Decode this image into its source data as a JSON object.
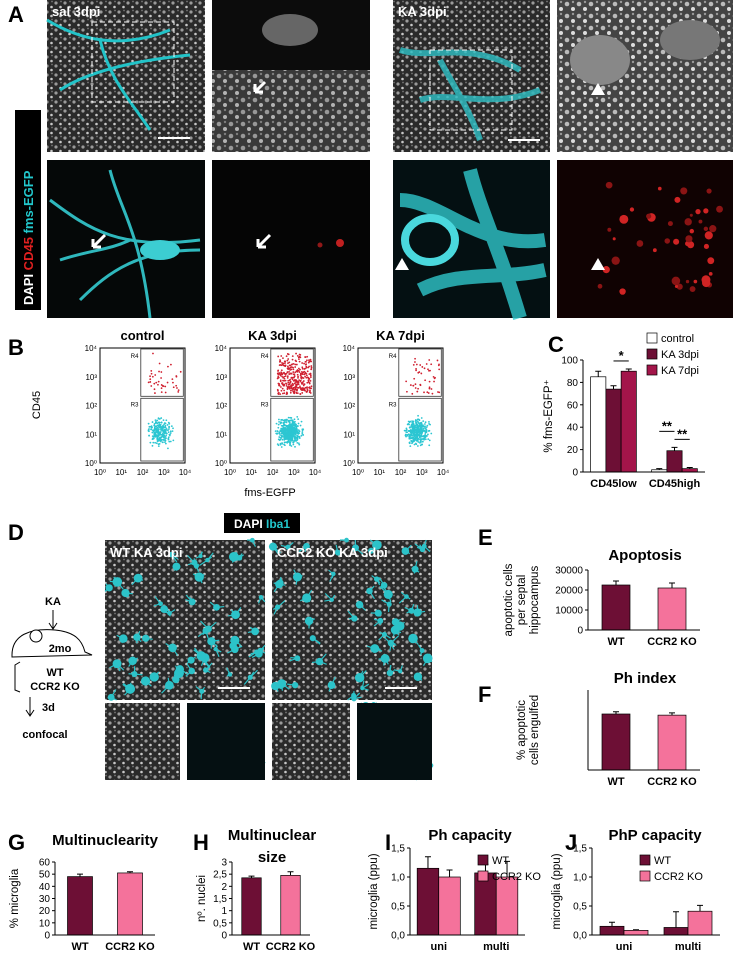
{
  "figure": {
    "A": {
      "letter": "A",
      "left_label": "sal 3dpi",
      "right_label": "KA 3dpi",
      "stain": [
        "DAPI",
        "CD45",
        "fms-EGFP"
      ]
    },
    "B": {
      "letter": "B",
      "plots": [
        "control",
        "KA 3dpi",
        "KA 7dpi"
      ],
      "y_label": "CD45",
      "x_label": "fms-EGFP",
      "gates": [
        "R4",
        "R3"
      ],
      "y_tick_labels": [
        "10⁰",
        "10¹",
        "10²",
        "10³",
        "10⁴"
      ],
      "x_tick_labels": [
        "10⁰",
        "10¹",
        "10²",
        "10³",
        "10⁴"
      ]
    },
    "D": {
      "letter": "D",
      "stain": [
        "DAPI",
        "Iba1"
      ],
      "left_image": "WT KA 3dpi",
      "right_image": "CCR2 KO KA 3dpi",
      "scheme": [
        "KA",
        "2mo",
        "WT",
        "CCR2 KO",
        "3d",
        "confocal"
      ]
    }
  },
  "chart_data": [
    {
      "type": "bar",
      "panel": "C",
      "y_label": "% fms-EGFP⁺",
      "categories": [
        "CD45low",
        "CD45high"
      ],
      "series": [
        {
          "name": "control",
          "color": "#ffffff",
          "values": [
            85,
            2
          ],
          "errors": [
            5,
            1
          ]
        },
        {
          "name": "KA 3dpi",
          "color": "#6d0f35",
          "values": [
            74,
            19
          ],
          "errors": [
            3,
            3
          ]
        },
        {
          "name": "KA 7dpi",
          "color": "#a3154a",
          "values": [
            90,
            3
          ],
          "errors": [
            2,
            1
          ]
        }
      ],
      "ylim": [
        0,
        100
      ],
      "yticks": [
        0,
        20,
        40,
        60,
        80,
        100
      ],
      "annotations": [
        "*",
        "**",
        "**"
      ]
    },
    {
      "type": "bar",
      "panel": "E",
      "title": [
        "Apoptosis"
      ],
      "y_label": [
        "apoptotic cells",
        "per septal",
        "hippocampus"
      ],
      "categories": [
        "WT",
        "CCR2 KO"
      ],
      "series": [
        {
          "colors": [
            "#6d0f35",
            "#f4729b"
          ],
          "values": [
            22500,
            21000
          ],
          "errors": [
            2000,
            2500
          ]
        }
      ],
      "ylim": [
        0,
        30000
      ],
      "yticks": [
        0,
        10000,
        20000,
        30000
      ]
    },
    {
      "type": "bar",
      "panel": "F",
      "title": [
        "Ph index"
      ],
      "y_label": [
        "% apoptotic",
        "cells engulfed"
      ],
      "categories": [
        "WT",
        "CCR2 KO"
      ],
      "series": [
        {
          "colors": [
            "#6d0f35",
            "#f4729b"
          ],
          "values": [
            24.5,
            24
          ],
          "errors": [
            1,
            1
          ]
        }
      ],
      "ylim": [
        0,
        35
      ],
      "yticks": []
    },
    {
      "type": "bar",
      "panel": "G",
      "title": [
        "Multinuclearity"
      ],
      "y_label": [
        "% microglia"
      ],
      "categories": [
        "WT",
        "CCR2 KO"
      ],
      "series": [
        {
          "colors": [
            "#6d0f35",
            "#f4729b"
          ],
          "values": [
            48,
            51
          ],
          "errors": [
            2,
            1
          ]
        }
      ],
      "ylim": [
        0,
        60
      ],
      "yticks": [
        0,
        10,
        20,
        30,
        40,
        50,
        60
      ]
    },
    {
      "type": "bar",
      "panel": "H",
      "title": [
        "Multinuclear",
        "size"
      ],
      "y_label": [
        "nº. nuclei"
      ],
      "categories": [
        "WT",
        "CCR2 KO"
      ],
      "series": [
        {
          "colors": [
            "#6d0f35",
            "#f4729b"
          ],
          "values": [
            2.35,
            2.45
          ],
          "errors": [
            0.07,
            0.15
          ]
        }
      ],
      "ylim": [
        0,
        3
      ],
      "yticks": [
        0,
        {
          "value": 0.5,
          "label": "0,5"
        },
        1,
        {
          "value": 1.5,
          "label": "1,5"
        },
        2,
        {
          "value": 2.5,
          "label": "2,5"
        },
        3
      ]
    },
    {
      "type": "bar",
      "panel": "I",
      "title": [
        "Ph capacity"
      ],
      "y_label": [
        "microglia (ppu)"
      ],
      "categories": [
        "uni",
        "multi"
      ],
      "series": [
        {
          "name": "WT",
          "color": "#6d0f35",
          "values": [
            1.15,
            1.07
          ],
          "errors": [
            0.2,
            0.15
          ]
        },
        {
          "name": "CCR2 KO",
          "color": "#f4729b",
          "values": [
            1.0,
            1.0
          ],
          "errors": [
            0.12,
            0.27
          ]
        }
      ],
      "ylim": [
        0,
        1.5
      ],
      "yticks": [
        {
          "value": 0,
          "label": "0,0"
        },
        {
          "value": 0.5,
          "label": "0,5"
        },
        {
          "value": 1,
          "label": "1,0"
        },
        {
          "value": 1.5,
          "label": "1,5"
        }
      ]
    },
    {
      "type": "bar",
      "panel": "J",
      "title": [
        "PhP capacity"
      ],
      "y_label": [
        "microglia (ppu)"
      ],
      "categories": [
        "uni",
        "multi"
      ],
      "series": [
        {
          "name": "WT",
          "color": "#6d0f35",
          "values": [
            0.15,
            0.13
          ],
          "errors": [
            0.07,
            0.27
          ]
        },
        {
          "name": "CCR2 KO",
          "color": "#f4729b",
          "values": [
            0.08,
            0.41
          ],
          "errors": [
            0.01,
            0.1
          ]
        }
      ],
      "ylim": [
        0,
        1.5
      ],
      "yticks": [
        {
          "value": 0,
          "label": "0,0"
        },
        {
          "value": 0.5,
          "label": "0,5"
        },
        {
          "value": 1,
          "label": "1,0"
        },
        {
          "value": 1.5,
          "label": "1,5"
        }
      ]
    }
  ]
}
